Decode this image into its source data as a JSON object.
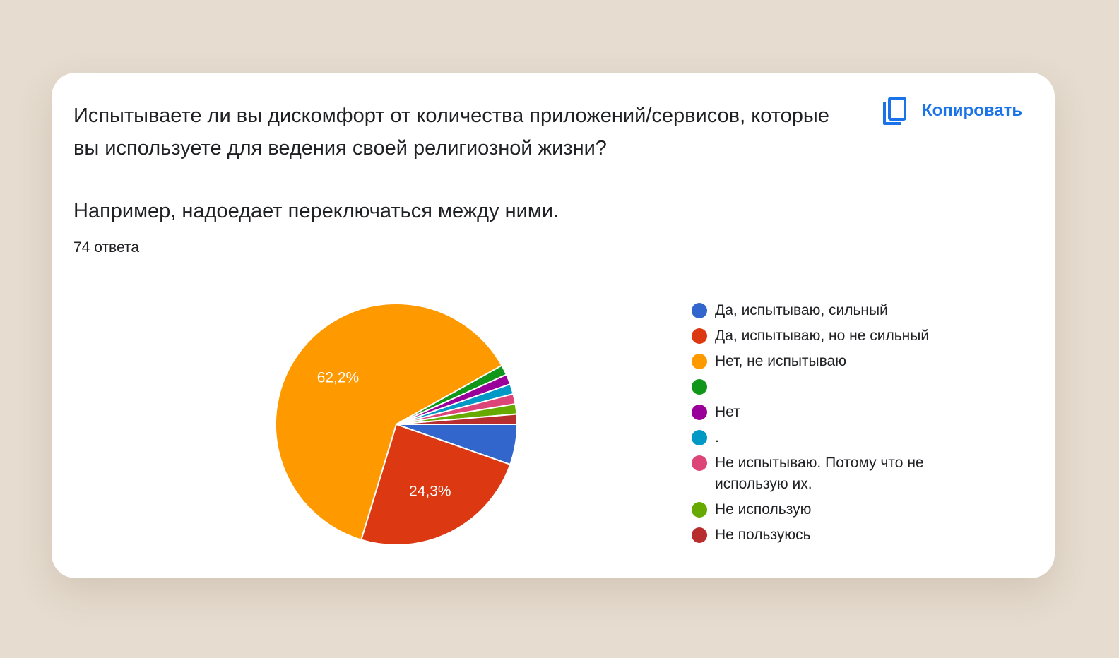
{
  "question": {
    "title": "Испытываете ли вы дискомфорт от количества приложений/сервисов, которые вы используете для ведения своей религиозной жизни?",
    "subtitle": "Например, надоедает переключаться между ними.",
    "responses": "74 ответа"
  },
  "toolbar": {
    "copy_label": "Копировать",
    "copy_icon": "copy-icon"
  },
  "colors": {
    "accent": "#1a73e8",
    "background": "#e6dccf",
    "card": "#ffffff"
  },
  "chart_data": {
    "type": "pie",
    "title": "",
    "start": "3 o'clock, counterclockwise order reversed (clockwise from east)",
    "legend_position": "right",
    "slices": [
      {
        "label": "Да, испытываю, сильный",
        "value": 5.4,
        "color": "#3366cc",
        "display": ""
      },
      {
        "label": "Да, испытываю, но не сильный",
        "value": 24.3,
        "color": "#dc3912",
        "display": "24,3%"
      },
      {
        "label": "Нет, не испытываю",
        "value": 62.2,
        "color": "#ff9900",
        "display": "62,2%"
      },
      {
        "label": "",
        "value": 1.35,
        "color": "#109618",
        "display": ""
      },
      {
        "label": "Нет",
        "value": 1.35,
        "color": "#990099",
        "display": ""
      },
      {
        "label": ".",
        "value": 1.35,
        "color": "#0099c6",
        "display": ""
      },
      {
        "label": "Не испытываю. Потому что не использую их.",
        "value": 1.35,
        "color": "#dd4477",
        "display": ""
      },
      {
        "label": "Не использую",
        "value": 1.35,
        "color": "#66aa00",
        "display": ""
      },
      {
        "label": "Не пользуюсь",
        "value": 1.35,
        "color": "#b82e2e",
        "display": ""
      }
    ]
  }
}
